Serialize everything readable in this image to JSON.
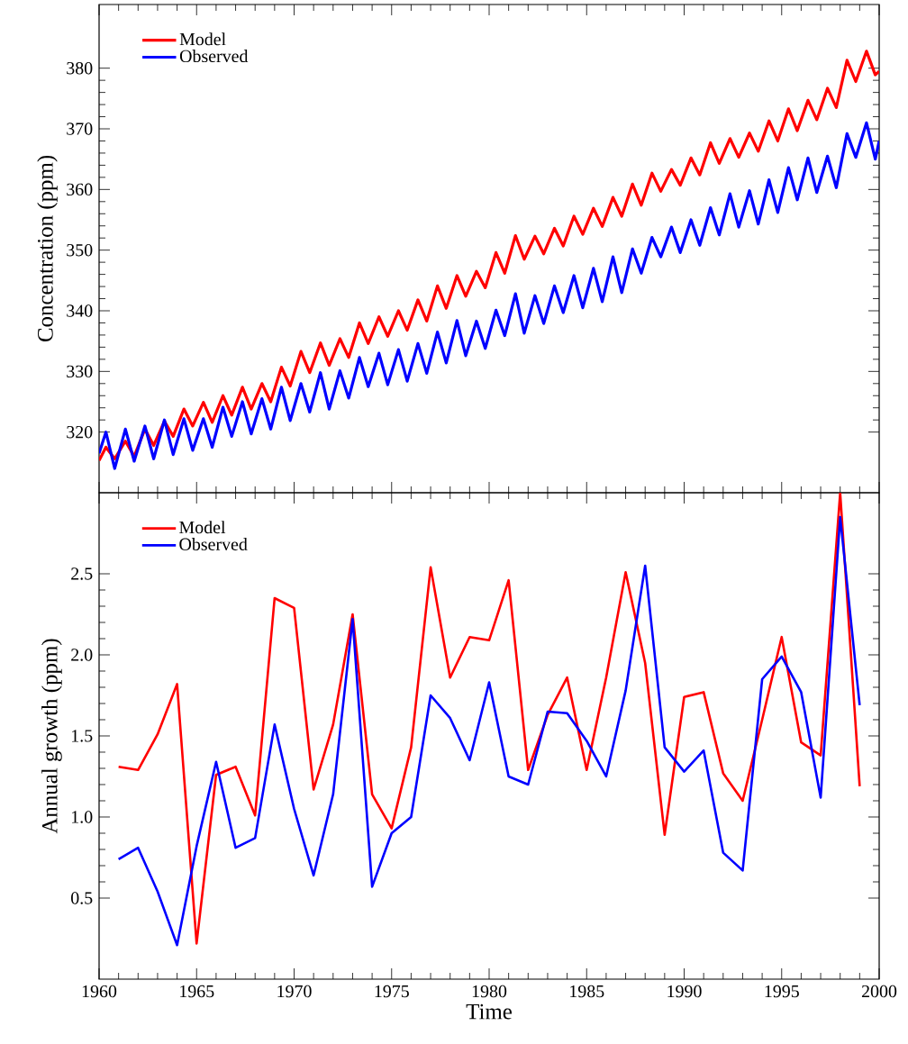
{
  "chart_data": [
    {
      "type": "line",
      "ylabel": "Concentration (ppm)",
      "xlim": [
        1960,
        2000
      ],
      "ylim": [
        310,
        390.5
      ],
      "xticks": [
        1960,
        1965,
        1970,
        1975,
        1980,
        1985,
        1990,
        1995,
        2000
      ],
      "yticks": [
        320,
        330,
        340,
        350,
        360,
        370,
        380
      ],
      "tick_labels": "y",
      "legend": "top left",
      "marker": "none",
      "line_style": "solid",
      "series": [
        {
          "name": "Model",
          "color": "#ff0000",
          "x": [
            1960,
            1960.35,
            1960.8,
            1961.35,
            1961.8,
            1962.35,
            1962.8,
            1963.35,
            1963.8,
            1964.35,
            1964.8,
            1965.35,
            1965.8,
            1966.35,
            1966.8,
            1967.35,
            1967.8,
            1968.35,
            1968.8,
            1969.35,
            1969.8,
            1970.35,
            1970.8,
            1971.35,
            1971.8,
            1972.35,
            1972.8,
            1973.35,
            1973.8,
            1974.35,
            1974.8,
            1975.35,
            1975.8,
            1976.35,
            1976.8,
            1977.35,
            1977.8,
            1978.35,
            1978.8,
            1979.35,
            1979.8,
            1980.35,
            1980.8,
            1981.35,
            1981.8,
            1982.35,
            1982.8,
            1983.35,
            1983.8,
            1984.35,
            1984.8,
            1985.35,
            1985.8,
            1986.35,
            1986.8,
            1987.35,
            1987.8,
            1988.35,
            1988.8,
            1989.35,
            1989.8,
            1990.35,
            1990.8,
            1991.35,
            1991.8,
            1992.35,
            1992.8,
            1993.35,
            1993.8,
            1994.35,
            1994.8,
            1995.35,
            1995.8,
            1996.35,
            1996.8,
            1997.35,
            1997.8,
            1998.35,
            1998.8,
            1999.35,
            1999.8,
            2000
          ],
          "values": [
            315.3,
            317.5,
            315.6,
            318.5,
            316.0,
            320.5,
            317.8,
            321.8,
            319.3,
            323.8,
            321.0,
            324.9,
            321.6,
            326.0,
            322.8,
            327.4,
            323.8,
            328.0,
            325.0,
            330.7,
            327.6,
            333.3,
            329.8,
            334.7,
            331.0,
            335.4,
            332.3,
            338.0,
            334.6,
            339.0,
            335.8,
            340.0,
            336.8,
            341.8,
            338.3,
            344.1,
            340.4,
            345.8,
            342.4,
            346.5,
            343.8,
            349.6,
            346.2,
            352.4,
            348.5,
            352.3,
            349.4,
            353.6,
            350.7,
            355.6,
            352.6,
            356.9,
            353.9,
            358.7,
            355.6,
            360.9,
            357.4,
            362.7,
            359.7,
            363.3,
            360.7,
            365.2,
            362.4,
            367.7,
            364.3,
            368.4,
            365.3,
            369.3,
            366.3,
            371.3,
            368.0,
            373.3,
            369.7,
            374.7,
            371.5,
            376.7,
            373.5,
            381.3,
            377.8,
            382.8,
            378.9,
            379.5
          ]
        },
        {
          "name": "Observed",
          "color": "#0000ff",
          "x": [
            1960,
            1960.35,
            1960.8,
            1961.35,
            1961.8,
            1962.35,
            1962.8,
            1963.35,
            1963.8,
            1964.35,
            1964.8,
            1965.35,
            1965.8,
            1966.35,
            1966.8,
            1967.35,
            1967.8,
            1968.35,
            1968.8,
            1969.35,
            1969.8,
            1970.35,
            1970.8,
            1971.35,
            1971.8,
            1972.35,
            1972.8,
            1973.35,
            1973.8,
            1974.35,
            1974.8,
            1975.35,
            1975.8,
            1976.35,
            1976.8,
            1977.35,
            1977.8,
            1978.35,
            1978.8,
            1979.35,
            1979.8,
            1980.35,
            1980.8,
            1981.35,
            1981.8,
            1982.35,
            1982.8,
            1983.35,
            1983.8,
            1984.35,
            1984.8,
            1985.35,
            1985.8,
            1986.35,
            1986.8,
            1987.35,
            1987.8,
            1988.35,
            1988.8,
            1989.35,
            1989.8,
            1990.35,
            1990.8,
            1991.35,
            1991.8,
            1992.35,
            1992.8,
            1993.35,
            1993.8,
            1994.35,
            1994.8,
            1995.35,
            1995.8,
            1996.35,
            1996.8,
            1997.35,
            1997.8,
            1998.35,
            1998.8,
            1999.35,
            1999.8,
            2000
          ],
          "values": [
            316.5,
            320.0,
            314.0,
            320.5,
            315.2,
            321.0,
            315.6,
            322.0,
            316.3,
            322.2,
            317.0,
            322.2,
            317.5,
            324.1,
            319.3,
            325.0,
            319.7,
            325.5,
            320.5,
            327.4,
            321.9,
            328.0,
            323.3,
            329.8,
            323.8,
            330.1,
            325.6,
            332.3,
            327.5,
            333.0,
            327.8,
            333.6,
            328.4,
            334.6,
            329.7,
            336.5,
            331.4,
            338.4,
            332.6,
            338.3,
            333.8,
            340.1,
            335.9,
            342.8,
            336.3,
            342.5,
            337.9,
            344.1,
            339.7,
            345.8,
            340.5,
            347.0,
            341.5,
            348.9,
            343.0,
            350.2,
            346.2,
            352.1,
            348.9,
            353.8,
            349.6,
            355.0,
            350.8,
            357.0,
            352.5,
            359.3,
            353.8,
            359.8,
            354.3,
            361.6,
            356.2,
            363.6,
            358.3,
            365.2,
            359.5,
            365.5,
            360.3,
            369.2,
            365.3,
            371.0,
            365.0,
            368.0
          ]
        }
      ]
    },
    {
      "type": "line",
      "xlabel": "Time",
      "ylabel": "Annual growth (ppm)",
      "xlim": [
        1960,
        2000
      ],
      "ylim": [
        0,
        3
      ],
      "xticks": [
        1960,
        1965,
        1970,
        1975,
        1980,
        1985,
        1990,
        1995,
        2000
      ],
      "yticks": [
        0.5,
        {
          "value": 1.0,
          "label": "1.0"
        },
        1.5,
        {
          "value": 2.0,
          "label": "2.0"
        },
        2.5
      ],
      "legend": "top left",
      "marker": "none",
      "line_style": "solid",
      "series": [
        {
          "name": "Model",
          "color": "#ff0000",
          "x": [
            1961,
            1962,
            1963,
            1964,
            1965,
            1966,
            1967,
            1968,
            1969,
            1970,
            1971,
            1972,
            1973,
            1974,
            1975,
            1976,
            1977,
            1978,
            1979,
            1980,
            1981,
            1982,
            1983,
            1984,
            1985,
            1986,
            1987,
            1988,
            1989,
            1990,
            1991,
            1992,
            1993,
            1994,
            1995,
            1996,
            1997,
            1998,
            1999
          ],
          "values": [
            1.31,
            1.29,
            1.51,
            1.82,
            0.22,
            1.26,
            1.31,
            1.01,
            2.35,
            2.29,
            1.17,
            1.57,
            2.25,
            1.14,
            0.93,
            1.43,
            2.54,
            1.86,
            2.11,
            2.09,
            2.46,
            1.29,
            1.63,
            1.86,
            1.29,
            1.86,
            2.51,
            1.95,
            0.89,
            1.74,
            1.77,
            1.27,
            1.1,
            1.6,
            2.11,
            1.46,
            1.38,
            3.0,
            1.19
          ]
        },
        {
          "name": "Observed",
          "color": "#0000ff",
          "x": [
            1961,
            1962,
            1963,
            1964,
            1965,
            1966,
            1967,
            1968,
            1969,
            1970,
            1971,
            1972,
            1973,
            1974,
            1975,
            1976,
            1977,
            1978,
            1979,
            1980,
            1981,
            1982,
            1983,
            1984,
            1985,
            1986,
            1987,
            1988,
            1989,
            1990,
            1991,
            1992,
            1993,
            1994,
            1995,
            1996,
            1997,
            1998,
            1999
          ],
          "values": [
            0.74,
            0.81,
            0.54,
            0.21,
            0.82,
            1.34,
            0.81,
            0.87,
            1.57,
            1.05,
            0.64,
            1.14,
            2.22,
            0.57,
            0.9,
            1.0,
            1.75,
            1.61,
            1.35,
            1.83,
            1.25,
            1.2,
            1.65,
            1.64,
            1.47,
            1.25,
            1.78,
            2.55,
            1.43,
            1.28,
            1.41,
            0.78,
            0.67,
            1.85,
            1.99,
            1.77,
            1.12,
            2.85,
            1.69
          ]
        }
      ]
    }
  ]
}
